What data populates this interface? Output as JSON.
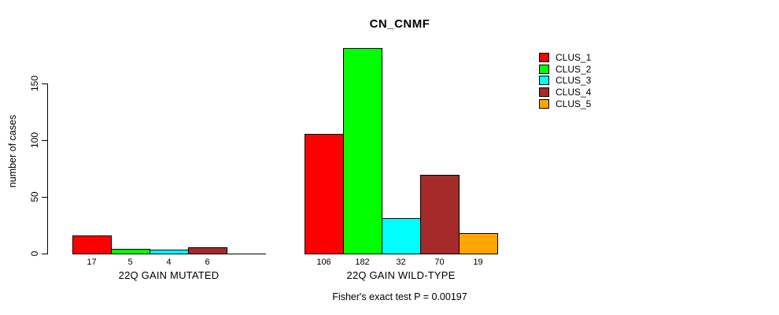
{
  "chart_data": {
    "type": "bar",
    "title": "CN_CNMF",
    "ylabel": "number of cases",
    "yticks": [
      0,
      50,
      100,
      150
    ],
    "ylim": [
      0,
      185
    ],
    "grid": false,
    "legend_position": "top-right",
    "categories": [
      "22Q GAIN MUTATED",
      "22Q GAIN WILD-TYPE"
    ],
    "series": [
      {
        "name": "CLUS_1",
        "color": "#ff0000",
        "values": [
          17,
          106
        ]
      },
      {
        "name": "CLUS_2",
        "color": "#00ff00",
        "values": [
          5,
          182
        ]
      },
      {
        "name": "CLUS_3",
        "color": "#00ffff",
        "values": [
          4,
          32
        ]
      },
      {
        "name": "CLUS_4",
        "color": "#a52a2a",
        "values": [
          6,
          70
        ]
      },
      {
        "name": "CLUS_5",
        "color": "#ffa500",
        "values": [
          0,
          19
        ]
      }
    ],
    "bar_label_rule": "value shown under each bar; zero-height bars unlabeled",
    "annotation": "Fisher's exact test P = 0.00197"
  }
}
